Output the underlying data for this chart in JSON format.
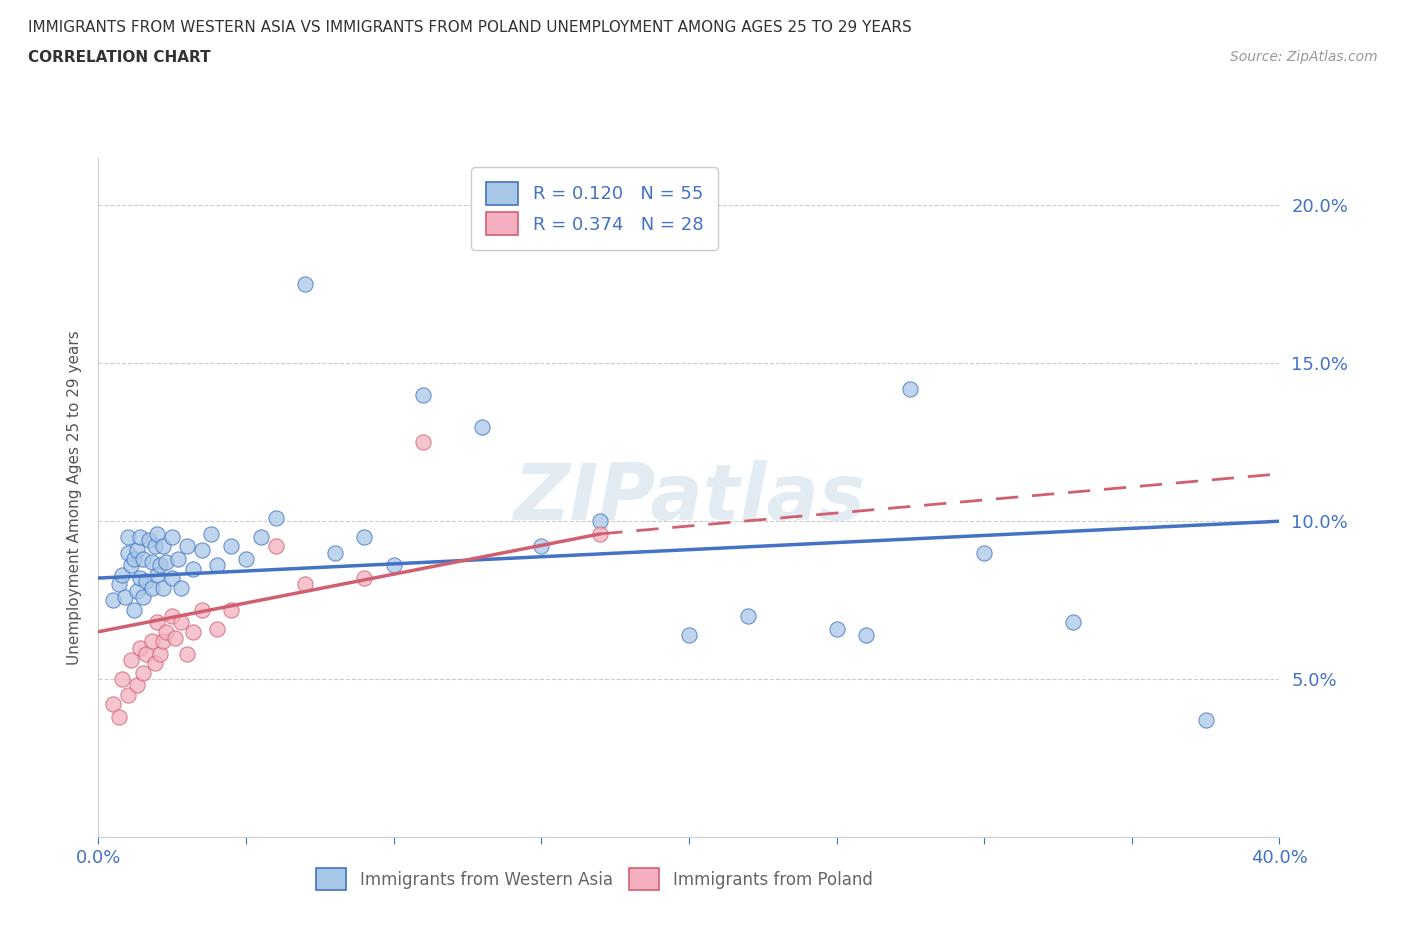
{
  "title_line1": "IMMIGRANTS FROM WESTERN ASIA VS IMMIGRANTS FROM POLAND UNEMPLOYMENT AMONG AGES 25 TO 29 YEARS",
  "title_line2": "CORRELATION CHART",
  "source_text": "Source: ZipAtlas.com",
  "ylabel": "Unemployment Among Ages 25 to 29 years",
  "xlim": [
    0.0,
    0.4
  ],
  "ylim": [
    0.0,
    0.215
  ],
  "xticks": [
    0.0,
    0.05,
    0.1,
    0.15,
    0.2,
    0.25,
    0.3,
    0.35,
    0.4
  ],
  "yticks": [
    0.0,
    0.05,
    0.1,
    0.15,
    0.2
  ],
  "yticklabels_right": [
    "",
    "5.0%",
    "10.0%",
    "15.0%",
    "20.0%"
  ],
  "legend_r1": "R = 0.120   N = 55",
  "legend_r2": "R = 0.374   N = 28",
  "color_wa_fill": "#a8c8e8",
  "color_wa_edge": "#4472c4",
  "color_pl_fill": "#f4b0c0",
  "color_pl_edge": "#d06070",
  "color_line_wa": "#4472c4",
  "color_line_pl": "#d06070",
  "watermark": "ZIPatlas",
  "trend_wa": [
    0.0,
    0.4,
    0.082,
    0.1
  ],
  "trend_pl_solid": [
    0.0,
    0.17,
    0.065,
    0.096
  ],
  "trend_pl_dash": [
    0.17,
    0.4,
    0.096,
    0.115
  ],
  "wa_x": [
    0.005,
    0.007,
    0.008,
    0.009,
    0.01,
    0.01,
    0.011,
    0.012,
    0.012,
    0.013,
    0.013,
    0.014,
    0.014,
    0.015,
    0.015,
    0.016,
    0.017,
    0.018,
    0.018,
    0.019,
    0.02,
    0.02,
    0.021,
    0.022,
    0.022,
    0.023,
    0.025,
    0.025,
    0.027,
    0.028,
    0.03,
    0.032,
    0.035,
    0.038,
    0.04,
    0.045,
    0.05,
    0.055,
    0.06,
    0.07,
    0.08,
    0.09,
    0.1,
    0.11,
    0.13,
    0.15,
    0.17,
    0.2,
    0.22,
    0.25,
    0.26,
    0.275,
    0.3,
    0.33,
    0.375
  ],
  "wa_y": [
    0.075,
    0.08,
    0.083,
    0.076,
    0.09,
    0.095,
    0.086,
    0.072,
    0.088,
    0.078,
    0.091,
    0.082,
    0.095,
    0.076,
    0.088,
    0.081,
    0.094,
    0.079,
    0.087,
    0.092,
    0.083,
    0.096,
    0.086,
    0.079,
    0.092,
    0.087,
    0.082,
    0.095,
    0.088,
    0.079,
    0.092,
    0.085,
    0.091,
    0.096,
    0.086,
    0.092,
    0.088,
    0.095,
    0.101,
    0.175,
    0.09,
    0.095,
    0.086,
    0.14,
    0.13,
    0.092,
    0.1,
    0.064,
    0.07,
    0.066,
    0.064,
    0.142,
    0.09,
    0.068,
    0.037
  ],
  "pl_x": [
    0.005,
    0.007,
    0.008,
    0.01,
    0.011,
    0.013,
    0.014,
    0.015,
    0.016,
    0.018,
    0.019,
    0.02,
    0.021,
    0.022,
    0.023,
    0.025,
    0.026,
    0.028,
    0.03,
    0.032,
    0.035,
    0.04,
    0.045,
    0.06,
    0.07,
    0.09,
    0.11,
    0.17
  ],
  "pl_y": [
    0.042,
    0.038,
    0.05,
    0.045,
    0.056,
    0.048,
    0.06,
    0.052,
    0.058,
    0.062,
    0.055,
    0.068,
    0.058,
    0.062,
    0.065,
    0.07,
    0.063,
    0.068,
    0.058,
    0.065,
    0.072,
    0.066,
    0.072,
    0.092,
    0.08,
    0.082,
    0.125,
    0.096
  ]
}
